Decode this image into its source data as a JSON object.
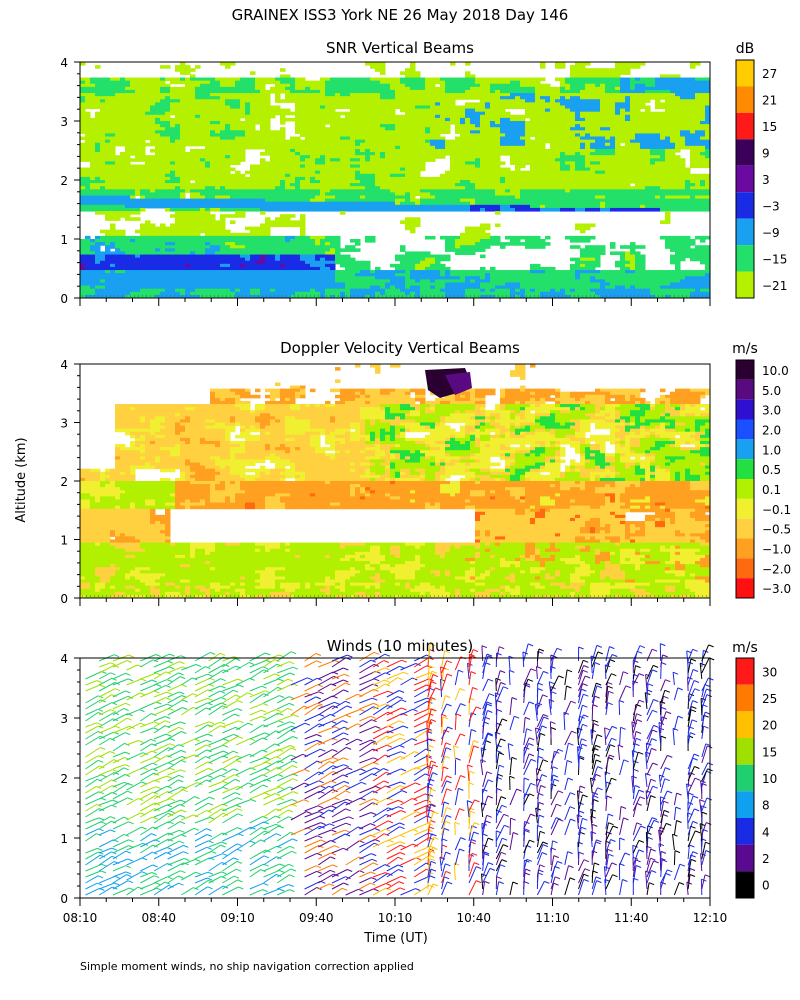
{
  "page": {
    "title": "GRAINEX ISS3 York NE  26 May 2018 Day 146",
    "ylabel": "Altitude (km)",
    "xlabel": "Time (UT)",
    "footnote": "Simple moment winds, no ship navigation correction applied"
  },
  "chart_data": [
    {
      "type": "heatmap",
      "title": "SNR Vertical Beams",
      "xlim": [
        "08:10",
        "12:10"
      ],
      "ylim": [
        0,
        4
      ],
      "x_ticks": [
        "08:10",
        "08:40",
        "09:10",
        "09:40",
        "10:10",
        "10:40",
        "11:10",
        "11:40",
        "12:10"
      ],
      "y_ticks": [
        "0",
        "1",
        "2",
        "3",
        "4"
      ],
      "colorbar": {
        "unit": "dB",
        "labels": [
          "27",
          "21",
          "15",
          "9",
          "3",
          "−3",
          "−9",
          "−15",
          "−21"
        ],
        "colors": [
          "#ffcc00",
          "#ff8c00",
          "#ff1a1a",
          "#3a005a",
          "#6a0aa0",
          "#1a2be6",
          "#1aa0f0",
          "#22e06a",
          "#b4f000"
        ]
      }
    },
    {
      "type": "heatmap",
      "title": "Doppler Velocity Vertical Beams",
      "xlim": [
        "08:10",
        "12:10"
      ],
      "ylim": [
        0,
        4
      ],
      "y_ticks": [
        "0",
        "1",
        "2",
        "3",
        "4"
      ],
      "colorbar": {
        "unit": "m/s",
        "labels": [
          "10.0",
          "5.0",
          "3.0",
          "2.0",
          "1.0",
          "0.5",
          "0.1",
          "−0.1",
          "−0.5",
          "−1.0",
          "−2.0",
          "−3.0"
        ],
        "colors": [
          "#2a0030",
          "#5a0a80",
          "#3010d0",
          "#1a50ff",
          "#1aa0f0",
          "#22e040",
          "#b0f000",
          "#f0f030",
          "#ffd040",
          "#ffa020",
          "#ff6a10",
          "#ff1010"
        ]
      }
    },
    {
      "type": "scatter",
      "title": "Winds (10 minutes)",
      "xlim": [
        "08:10",
        "12:10"
      ],
      "ylim": [
        0,
        4
      ],
      "x_ticks": [
        "08:10",
        "08:40",
        "09:10",
        "09:40",
        "10:10",
        "10:40",
        "11:10",
        "11:40",
        "12:10"
      ],
      "y_ticks": [
        "0",
        "1",
        "2",
        "3",
        "4"
      ],
      "colorbar": {
        "unit": "m/s",
        "labels": [
          "30",
          "25",
          "20",
          "15",
          "10",
          "8",
          "4",
          "2",
          "0"
        ],
        "colors": [
          "#ff1a1a",
          "#ff7a00",
          "#ffc000",
          "#a0e000",
          "#20d070",
          "#10a0f0",
          "#1a2be6",
          "#5a0a90",
          "#000000"
        ]
      }
    }
  ]
}
